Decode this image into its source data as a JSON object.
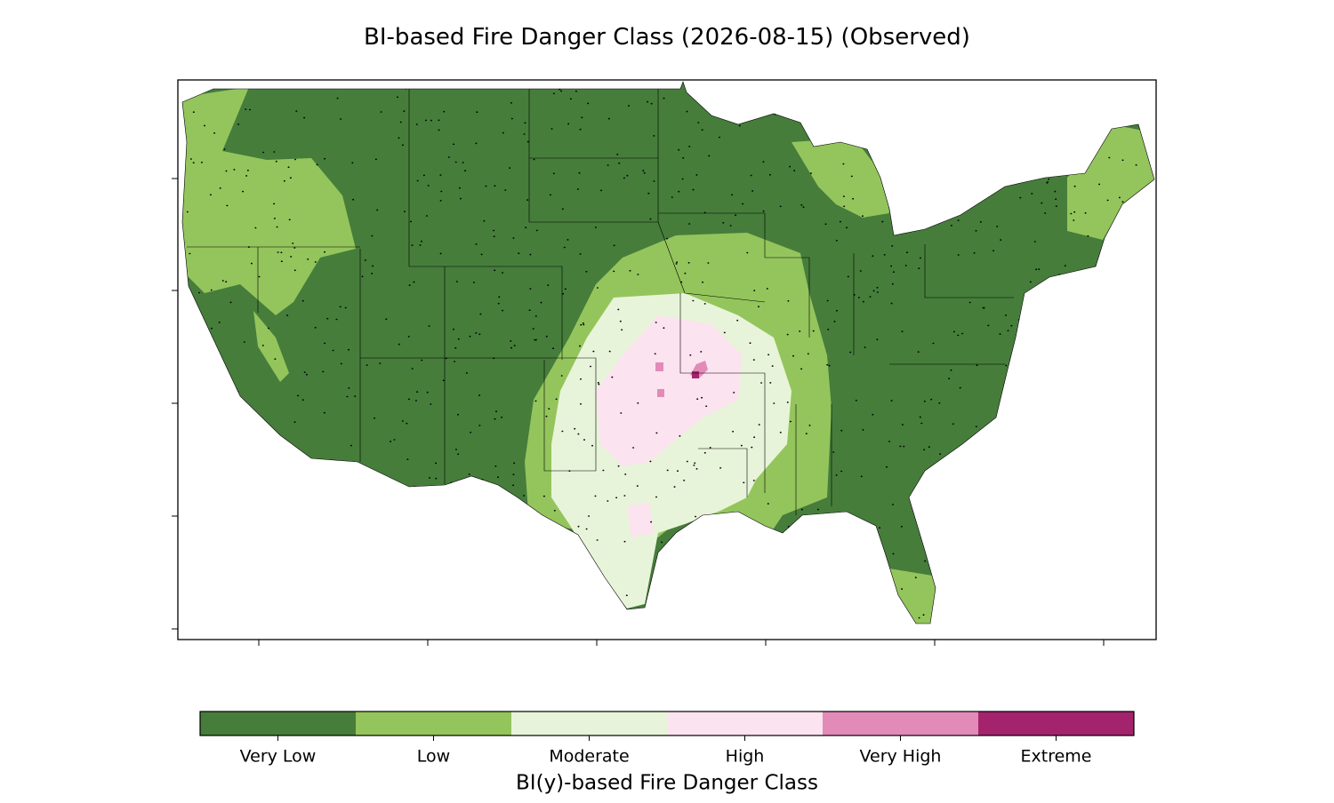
{
  "title": "BI-based Fire Danger Class (2026-08-15) (Observed)",
  "colorbar": {
    "label": "BI(y)-based Fire Danger Class",
    "classes": [
      {
        "name": "Very Low",
        "color": "#467d3b"
      },
      {
        "name": "Low",
        "color": "#94c55c"
      },
      {
        "name": "Moderate",
        "color": "#e8f4d9"
      },
      {
        "name": "High",
        "color": "#fbe3ef"
      },
      {
        "name": "Very High",
        "color": "#e28bb8"
      },
      {
        "name": "Extreme",
        "color": "#a3246d"
      }
    ]
  }
}
